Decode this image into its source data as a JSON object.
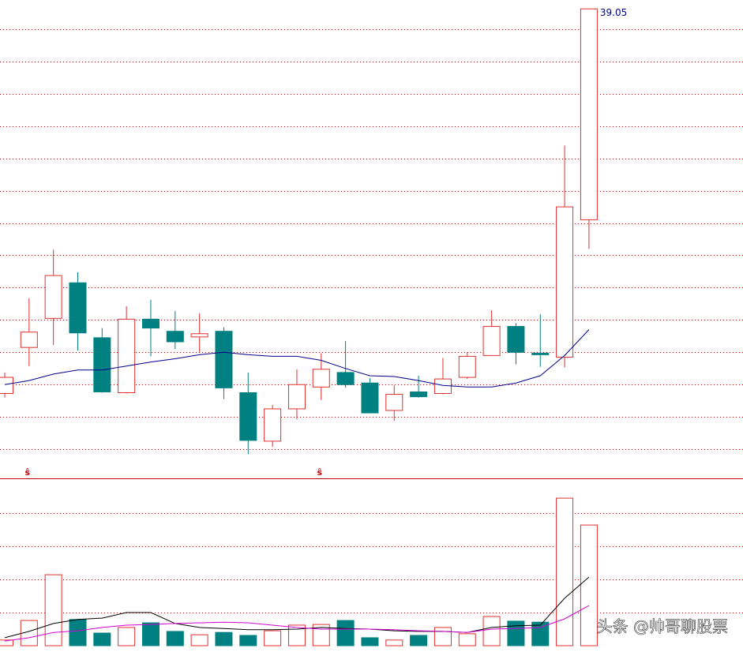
{
  "chart_data": [
    {
      "type": "candlestick",
      "open": [
        34.29,
        34.86,
        35.22,
        35.66,
        34.98,
        34.3,
        35.21,
        35.06,
        34.99,
        35.06,
        34.3,
        33.7,
        34.1,
        34.37,
        34.55,
        34.42,
        34.08,
        34.31,
        34.29,
        34.49,
        34.76,
        35.12,
        34.79,
        34.74,
        36.44
      ],
      "high": [
        34.55,
        35.47,
        36.07,
        35.79,
        35.1,
        35.37,
        35.45,
        35.31,
        35.28,
        35.11,
        34.55,
        34.15,
        34.59,
        34.79,
        34.94,
        34.48,
        34.39,
        34.51,
        34.73,
        34.8,
        35.32,
        35.16,
        35.27,
        37.36,
        39.05
      ],
      "low": [
        34.24,
        34.63,
        34.89,
        34.82,
        34.3,
        34.29,
        34.75,
        34.84,
        34.8,
        34.22,
        33.54,
        33.63,
        33.97,
        34.21,
        34.36,
        34.05,
        33.95,
        34.24,
        34.28,
        34.47,
        34.76,
        34.65,
        34.62,
        34.61,
        36.08
      ],
      "close": [
        34.49,
        35.05,
        35.75,
        35.04,
        34.31,
        35.21,
        35.1,
        34.93,
        35.03,
        34.36,
        33.71,
        34.1,
        34.4,
        34.59,
        34.4,
        34.05,
        34.28,
        34.25,
        34.47,
        34.75,
        35.12,
        34.8,
        34.77,
        36.6,
        39.05
      ],
      "up_color": "#e03030",
      "down_color": "#008080",
      "lines": [
        {
          "color": "#00008b",
          "values": [
            34.4,
            34.45,
            34.53,
            34.58,
            34.58,
            34.63,
            34.68,
            34.72,
            34.77,
            34.8,
            34.77,
            34.75,
            34.75,
            34.7,
            34.6,
            34.51,
            34.5,
            34.45,
            34.39,
            34.37,
            34.37,
            34.42,
            34.51,
            34.76,
            35.08
          ]
        }
      ],
      "signals": [
        null,
        "ŝ",
        null,
        null,
        null,
        null,
        null,
        null,
        null,
        null,
        null,
        null,
        null,
        "ŝ",
        null,
        null,
        null,
        null,
        null,
        null,
        null,
        null,
        null,
        null,
        null
      ],
      "ylim": [
        33.24,
        39.16
      ],
      "yticks": [
        33.6,
        34.0,
        34.4,
        34.8,
        35.2,
        35.6,
        36.0,
        36.4,
        36.8,
        37.2,
        37.6,
        38.0,
        38.4,
        38.8
      ],
      "grid": true,
      "grid_color": "#c00000"
    },
    {
      "type": "bar",
      "values": [
        0.17,
        0.76,
        2.14,
        0.79,
        0.38,
        0.55,
        0.69,
        0.43,
        0.33,
        0.4,
        0.31,
        0.45,
        0.62,
        0.64,
        0.76,
        0.24,
        0.17,
        0.31,
        0.55,
        0.36,
        0.88,
        0.74,
        0.71,
        4.45,
        3.64
      ],
      "lines": [
        {
          "color": "#000000",
          "values": [
            0.24,
            0.43,
            0.67,
            0.79,
            0.83,
            1.0,
            1.0,
            0.67,
            0.55,
            0.52,
            0.48,
            0.48,
            0.5,
            0.55,
            0.52,
            0.5,
            0.45,
            0.43,
            0.43,
            0.4,
            0.55,
            0.6,
            0.62,
            1.43,
            2.07
          ]
        },
        {
          "color": "#d000d0",
          "values": [
            0.14,
            0.24,
            0.4,
            0.45,
            0.55,
            0.62,
            0.64,
            0.67,
            0.69,
            0.71,
            0.69,
            0.62,
            0.55,
            0.5,
            0.5,
            0.5,
            0.48,
            0.45,
            0.43,
            0.4,
            0.5,
            0.52,
            0.55,
            0.81,
            1.21
          ]
        }
      ],
      "ylim": [
        0,
        5
      ],
      "yticks": [
        1,
        2,
        3,
        4
      ],
      "grid": true,
      "grid_color": "#c00000"
    }
  ],
  "watermark": "头条 @帅哥聊股票"
}
